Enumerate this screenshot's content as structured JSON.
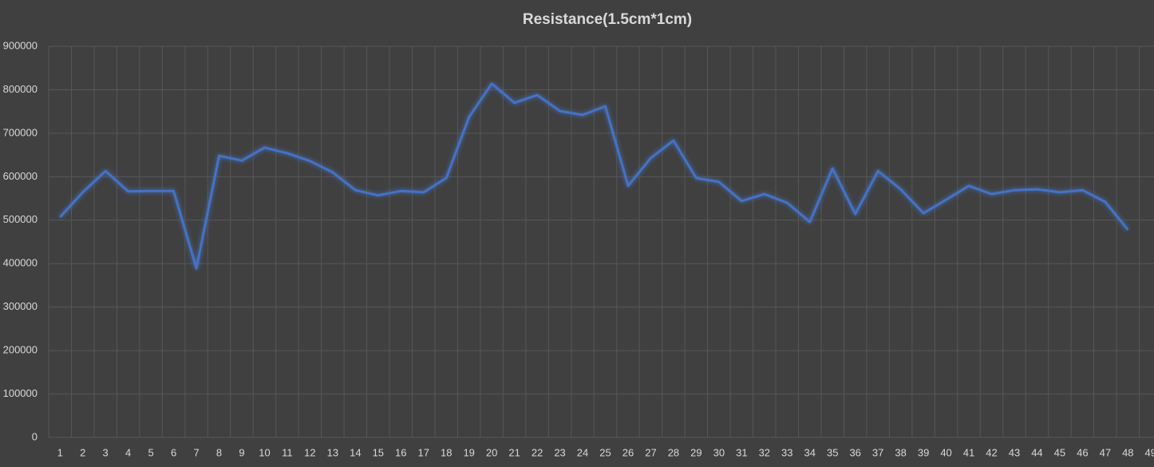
{
  "chart_data": {
    "type": "line",
    "title": "Resistance(1.5cm*1cm)",
    "categories": [
      "1",
      "2",
      "3",
      "4",
      "5",
      "6",
      "7",
      "8",
      "9",
      "10",
      "11",
      "12",
      "13",
      "14",
      "15",
      "16",
      "17",
      "18",
      "19",
      "20",
      "21",
      "22",
      "23",
      "24",
      "25",
      "26",
      "27",
      "28",
      "29",
      "30",
      "31",
      "32",
      "33",
      "34",
      "35",
      "36",
      "37",
      "38",
      "39",
      "40",
      "41",
      "42",
      "43",
      "44",
      "45",
      "46",
      "47",
      "48",
      "49"
    ],
    "series": [
      {
        "color": "#4472c4",
        "values": [
          507000,
          564000,
          613000,
          566000,
          567000,
          567000,
          389000,
          648000,
          637000,
          667000,
          654000,
          636000,
          610000,
          569000,
          557000,
          567000,
          564000,
          597000,
          737000,
          814000,
          770000,
          788000,
          751000,
          742000,
          762000,
          579000,
          643000,
          683000,
          597000,
          588000,
          544000,
          560000,
          540000,
          496000,
          619000,
          514000,
          613000,
          571000,
          516000,
          547000,
          579000,
          560000,
          569000,
          571000,
          564000,
          569000,
          542000,
          478000,
          null
        ]
      }
    ],
    "ylim": [
      0,
      900000
    ],
    "yticks": [
      0,
      100000,
      200000,
      300000,
      400000,
      500000,
      600000,
      700000,
      800000,
      900000
    ],
    "grid": true
  }
}
